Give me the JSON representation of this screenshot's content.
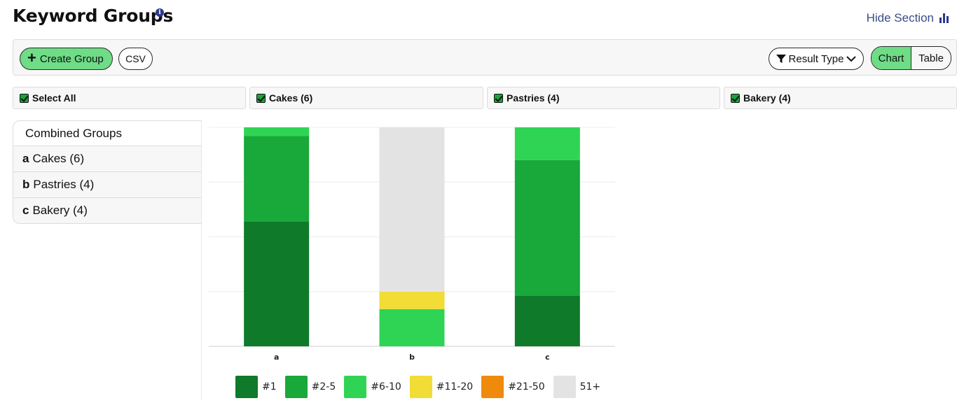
{
  "header": {
    "title": "Keyword Groups",
    "info_icon": "i",
    "hide_section_label": "Hide Section"
  },
  "toolbar": {
    "create_group_label": "Create Group",
    "csv_label": "CSV",
    "result_type_label": "Result Type",
    "view_toggle": {
      "chart_label": "Chart",
      "table_label": "Table",
      "selected": "Chart"
    }
  },
  "group_filters": [
    {
      "label": "Select All",
      "checked": true
    },
    {
      "label": "Cakes (6)",
      "checked": true
    },
    {
      "label": "Pastries (4)",
      "checked": true
    },
    {
      "label": "Bakery (4)",
      "checked": true
    }
  ],
  "sidebar": {
    "tabs": [
      {
        "key": "",
        "label": "Combined Groups",
        "active": true
      },
      {
        "key": "a",
        "label": "Cakes (6)",
        "active": false
      },
      {
        "key": "b",
        "label": "Pastries (4)",
        "active": false
      },
      {
        "key": "c",
        "label": "Bakery (4)",
        "active": false
      }
    ]
  },
  "colors": {
    "accent_green": "#6fdc86",
    "brand_navy": "#2d3a8c"
  },
  "chart_data": {
    "type": "bar",
    "stacked": true,
    "categories": [
      "a",
      "b",
      "c"
    ],
    "ylim": [
      0,
      100
    ],
    "grid": true,
    "legend_position": "bottom",
    "series": [
      {
        "name": "#1",
        "color": "#0f7a2a",
        "values": [
          57,
          0,
          23
        ]
      },
      {
        "name": "#2-5",
        "color": "#19a83a",
        "values": [
          39,
          0,
          62
        ]
      },
      {
        "name": "#6-10",
        "color": "#2fd455",
        "values": [
          4,
          17,
          15
        ]
      },
      {
        "name": "#11-20",
        "color": "#f2dc36",
        "values": [
          0,
          8,
          0
        ]
      },
      {
        "name": "#21-50",
        "color": "#ef8a0c",
        "values": [
          0,
          0,
          0
        ]
      },
      {
        "name": "51+",
        "color": "#e3e3e3",
        "values": [
          0,
          75,
          0
        ]
      }
    ]
  }
}
